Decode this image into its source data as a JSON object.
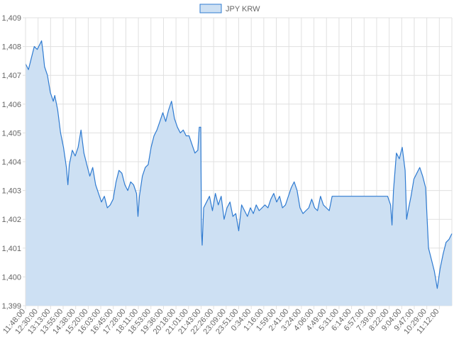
{
  "chart_data": {
    "type": "area",
    "title": "",
    "xlabel": "",
    "ylabel": "",
    "legend": {
      "position": "top-center",
      "entries": [
        "JPY KRW"
      ]
    },
    "grid": true,
    "ylim": [
      1399,
      1409
    ],
    "yticks": [
      1399,
      1400,
      1401,
      1402,
      1403,
      1404,
      1405,
      1406,
      1407,
      1408,
      1409
    ],
    "ytick_labels": [
      "1,399",
      "1,400",
      "1,401",
      "1,402",
      "1,403",
      "1,404",
      "1,405",
      "1,406",
      "1,407",
      "1,408",
      "1,409"
    ],
    "x_tick_labels": [
      "11:48:00",
      "12:30:00",
      "13:13:00",
      "13:55:00",
      "14:38:00",
      "15:20:00",
      "16:03:00",
      "16:45:00",
      "17:28:00",
      "18:11:00",
      "18:53:00",
      "19:36:00",
      "20:18:00",
      "21:01:00",
      "21:43:00",
      "22:26:00",
      "23:09:00",
      "23:51:00",
      "0:34:00",
      "1:16:00",
      "1:59:00",
      "2:41:00",
      "3:24:00",
      "4:06:00",
      "4:49:00",
      "5:31:00",
      "6:14:00",
      "6:57:00",
      "7:39:00",
      "8:22:00",
      "9:04:00",
      "9:47:00",
      "10:29:00",
      "11:12:00"
    ],
    "colors": {
      "line": "#2f7bd1",
      "fill": "#cde0f3",
      "grid": "#e0e0e0",
      "text": "#666666"
    },
    "series": [
      {
        "name": "JPY KRW",
        "points": [
          [
            0,
            1407.4
          ],
          [
            0.2,
            1407.2
          ],
          [
            0.4,
            1407.6
          ],
          [
            0.6,
            1408.0
          ],
          [
            0.8,
            1407.9
          ],
          [
            1.0,
            1408.1
          ],
          [
            1.1,
            1408.2
          ],
          [
            1.2,
            1407.8
          ],
          [
            1.3,
            1407.3
          ],
          [
            1.5,
            1407.0
          ],
          [
            1.7,
            1406.4
          ],
          [
            1.9,
            1406.1
          ],
          [
            2.0,
            1406.3
          ],
          [
            2.2,
            1405.8
          ],
          [
            2.4,
            1405.0
          ],
          [
            2.6,
            1404.5
          ],
          [
            2.8,
            1403.8
          ],
          [
            2.9,
            1403.2
          ],
          [
            3.0,
            1403.9
          ],
          [
            3.2,
            1404.4
          ],
          [
            3.4,
            1404.2
          ],
          [
            3.6,
            1404.5
          ],
          [
            3.8,
            1405.1
          ],
          [
            4.0,
            1404.3
          ],
          [
            4.2,
            1403.9
          ],
          [
            4.4,
            1403.5
          ],
          [
            4.6,
            1403.8
          ],
          [
            4.8,
            1403.2
          ],
          [
            5.0,
            1402.9
          ],
          [
            5.2,
            1402.6
          ],
          [
            5.4,
            1402.8
          ],
          [
            5.6,
            1402.4
          ],
          [
            5.8,
            1402.5
          ],
          [
            6.0,
            1402.7
          ],
          [
            6.2,
            1403.3
          ],
          [
            6.4,
            1403.7
          ],
          [
            6.6,
            1403.6
          ],
          [
            6.8,
            1403.2
          ],
          [
            7.0,
            1403.0
          ],
          [
            7.2,
            1403.3
          ],
          [
            7.4,
            1403.2
          ],
          [
            7.6,
            1402.9
          ],
          [
            7.7,
            1402.1
          ],
          [
            7.8,
            1402.8
          ],
          [
            8.0,
            1403.5
          ],
          [
            8.2,
            1403.8
          ],
          [
            8.4,
            1403.9
          ],
          [
            8.6,
            1404.5
          ],
          [
            8.8,
            1404.9
          ],
          [
            9.0,
            1405.1
          ],
          [
            9.2,
            1405.4
          ],
          [
            9.4,
            1405.7
          ],
          [
            9.6,
            1405.4
          ],
          [
            9.8,
            1405.8
          ],
          [
            10.0,
            1406.1
          ],
          [
            10.1,
            1405.8
          ],
          [
            10.2,
            1405.5
          ],
          [
            10.4,
            1405.2
          ],
          [
            10.6,
            1405.0
          ],
          [
            10.8,
            1405.1
          ],
          [
            11.0,
            1404.9
          ],
          [
            11.2,
            1404.9
          ],
          [
            11.4,
            1404.6
          ],
          [
            11.6,
            1404.3
          ],
          [
            11.8,
            1404.4
          ],
          [
            11.9,
            1405.2
          ],
          [
            12.0,
            1405.2
          ],
          [
            12.05,
            1401.6
          ],
          [
            12.1,
            1401.1
          ],
          [
            12.2,
            1402.4
          ],
          [
            12.4,
            1402.6
          ],
          [
            12.6,
            1402.8
          ],
          [
            12.8,
            1402.3
          ],
          [
            13.0,
            1402.9
          ],
          [
            13.2,
            1402.5
          ],
          [
            13.4,
            1402.8
          ],
          [
            13.6,
            1402.0
          ],
          [
            13.8,
            1402.4
          ],
          [
            14.0,
            1402.6
          ],
          [
            14.2,
            1402.1
          ],
          [
            14.4,
            1402.2
          ],
          [
            14.6,
            1401.6
          ],
          [
            14.8,
            1402.5
          ],
          [
            15.0,
            1402.3
          ],
          [
            15.2,
            1402.1
          ],
          [
            15.4,
            1402.4
          ],
          [
            15.6,
            1402.2
          ],
          [
            15.8,
            1402.5
          ],
          [
            16.0,
            1402.3
          ],
          [
            16.2,
            1402.4
          ],
          [
            16.4,
            1402.5
          ],
          [
            16.6,
            1402.4
          ],
          [
            16.8,
            1402.7
          ],
          [
            17.0,
            1402.9
          ],
          [
            17.2,
            1402.6
          ],
          [
            17.4,
            1402.8
          ],
          [
            17.6,
            1402.4
          ],
          [
            17.8,
            1402.5
          ],
          [
            18.0,
            1402.8
          ],
          [
            18.2,
            1403.1
          ],
          [
            18.4,
            1403.3
          ],
          [
            18.6,
            1403.0
          ],
          [
            18.8,
            1402.4
          ],
          [
            19.0,
            1402.2
          ],
          [
            19.2,
            1402.3
          ],
          [
            19.4,
            1402.4
          ],
          [
            19.6,
            1402.7
          ],
          [
            19.8,
            1402.4
          ],
          [
            20.0,
            1402.3
          ],
          [
            20.2,
            1402.8
          ],
          [
            20.4,
            1402.5
          ],
          [
            20.6,
            1402.4
          ],
          [
            20.8,
            1402.3
          ],
          [
            21.0,
            1402.8
          ],
          [
            22.0,
            1402.8
          ],
          [
            23.0,
            1402.8
          ],
          [
            24.0,
            1402.8
          ],
          [
            24.8,
            1402.8
          ],
          [
            25.0,
            1402.5
          ],
          [
            25.1,
            1401.8
          ],
          [
            25.2,
            1403.0
          ],
          [
            25.4,
            1404.3
          ],
          [
            25.6,
            1404.1
          ],
          [
            25.8,
            1404.5
          ],
          [
            26.0,
            1403.7
          ],
          [
            26.1,
            1402.0
          ],
          [
            26.2,
            1402.3
          ],
          [
            26.4,
            1402.8
          ],
          [
            26.6,
            1403.4
          ],
          [
            26.8,
            1403.6
          ],
          [
            27.0,
            1403.8
          ],
          [
            27.2,
            1403.5
          ],
          [
            27.4,
            1403.1
          ],
          [
            27.6,
            1401.0
          ],
          [
            27.8,
            1400.6
          ],
          [
            28.0,
            1400.2
          ],
          [
            28.2,
            1399.6
          ],
          [
            28.4,
            1400.3
          ],
          [
            28.6,
            1400.8
          ],
          [
            28.8,
            1401.2
          ],
          [
            29.0,
            1401.3
          ],
          [
            29.2,
            1401.5
          ]
        ]
      }
    ]
  }
}
